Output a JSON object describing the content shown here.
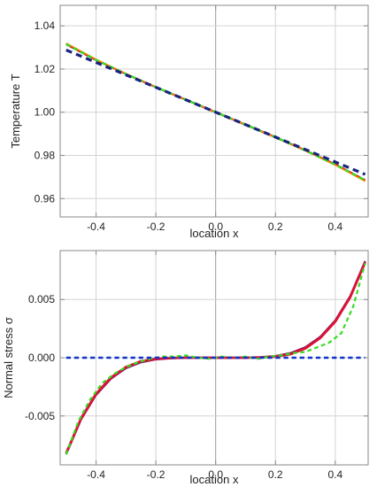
{
  "colors": {
    "frame": "#8a8a8a",
    "grid": "#d4d4d4",
    "zero_line": "#9a9a9a",
    "background": "#ffffff",
    "navy": "#1a237e",
    "green": "#33dd22",
    "red": "#dd1133",
    "orange": "#ff8800",
    "blue": "#1133cc",
    "purple": "#7a1a66"
  },
  "chart_data": [
    {
      "type": "line",
      "xlabel": "location  x",
      "ylabel": "Temperature  T",
      "xlim": [
        -0.52,
        0.51
      ],
      "ylim": [
        0.9515,
        1.0495
      ],
      "grid": true,
      "x_ticks": [
        {
          "value": -0.4,
          "label": "-0.4"
        },
        {
          "value": -0.2,
          "label": "-0.2"
        },
        {
          "value": 0.0,
          "label": "0.0"
        },
        {
          "value": 0.2,
          "label": "0.2"
        },
        {
          "value": 0.4,
          "label": "0.4"
        }
      ],
      "y_ticks": [
        {
          "value": 0.96,
          "label": "0.96"
        },
        {
          "value": 0.98,
          "label": "0.98"
        },
        {
          "value": 1.0,
          "label": "1.00"
        },
        {
          "value": 1.02,
          "label": "1.02"
        },
        {
          "value": 1.04,
          "label": "1.04"
        }
      ],
      "series": [
        {
          "color": "#dd1133",
          "dash": "solid",
          "width": 2.4,
          "x": [
            -0.5,
            -0.4,
            -0.3,
            -0.2,
            -0.1,
            0.0,
            0.1,
            0.2,
            0.3,
            0.4,
            0.5
          ],
          "y": [
            1.0315,
            1.0242,
            1.0177,
            1.0116,
            1.0058,
            1.0,
            0.9942,
            0.9884,
            0.9823,
            0.9758,
            0.9685
          ]
        },
        {
          "color": "#ff8800",
          "dash": "solid",
          "width": 1.6,
          "x": [
            -0.5,
            -0.4,
            -0.3,
            -0.2,
            -0.1,
            0.0,
            0.1,
            0.2,
            0.3,
            0.4,
            0.5
          ],
          "y": [
            1.032,
            1.0245,
            1.0178,
            1.0117,
            1.0058,
            1.0,
            0.9942,
            0.9883,
            0.9822,
            0.9755,
            0.968
          ]
        },
        {
          "color": "#33dd22",
          "dash": "dashed",
          "width": 2.4,
          "x": [
            -0.5,
            -0.4,
            -0.3,
            -0.2,
            -0.1,
            0.0,
            0.1,
            0.2,
            0.3,
            0.4,
            0.5
          ],
          "y": [
            1.0315,
            1.0242,
            1.0177,
            1.0116,
            1.0058,
            1.0,
            0.9942,
            0.9884,
            0.9823,
            0.9758,
            0.9685
          ]
        },
        {
          "color": "#1a237e",
          "dash": "dashed",
          "width": 3.2,
          "x": [
            -0.5,
            0.5
          ],
          "y": [
            1.0288,
            0.9712
          ]
        }
      ]
    },
    {
      "type": "line",
      "xlabel": "location  x",
      "ylabel": "Normal stress  σ",
      "xlim": [
        -0.52,
        0.51
      ],
      "ylim": [
        -0.0092,
        0.0092
      ],
      "grid": true,
      "x_ticks": [
        {
          "value": -0.4,
          "label": "-0.4"
        },
        {
          "value": -0.2,
          "label": "-0.2"
        },
        {
          "value": 0.0,
          "label": "0.0"
        },
        {
          "value": 0.2,
          "label": "0.2"
        },
        {
          "value": 0.4,
          "label": "0.4"
        }
      ],
      "y_ticks": [
        {
          "value": -0.005,
          "label": "-0.005"
        },
        {
          "value": 0.0,
          "label": "0.000"
        },
        {
          "value": 0.005,
          "label": "0.005"
        }
      ],
      "series": [
        {
          "color": "#7a1a66",
          "dash": "solid",
          "width": 2.2,
          "x": [
            -0.5,
            -0.45,
            -0.4,
            -0.35,
            -0.3,
            -0.25,
            -0.2,
            -0.15,
            -0.1,
            0.0,
            0.1,
            0.15,
            0.2,
            0.25,
            0.3,
            0.35,
            0.4,
            0.45,
            0.5
          ],
          "y": [
            -0.0083,
            -0.0053,
            -0.0032,
            -0.0018,
            -0.0009,
            -0.0004,
            -0.00015,
            -5e-05,
            0.0,
            0.0,
            0.0,
            5e-05,
            0.00015,
            0.0004,
            0.0009,
            0.0018,
            0.0032,
            0.0053,
            0.0083
          ]
        },
        {
          "color": "#dd1133",
          "dash": "solid",
          "width": 2.8,
          "x": [
            -0.5,
            -0.45,
            -0.4,
            -0.35,
            -0.3,
            -0.25,
            -0.2,
            -0.15,
            -0.1,
            0.0,
            0.1,
            0.15,
            0.2,
            0.25,
            0.3,
            0.35,
            0.4,
            0.45,
            0.5
          ],
          "y": [
            -0.0082,
            -0.0052,
            -0.0031,
            -0.0017,
            -0.0008,
            -0.0003,
            -0.0001,
            -3e-05,
            0.0,
            0.0,
            0.0,
            3e-05,
            0.0001,
            0.0003,
            0.0008,
            0.0017,
            0.0031,
            0.0052,
            0.0082
          ]
        },
        {
          "color": "#33dd22",
          "dash": "dashed",
          "width": 2.2,
          "x": [
            -0.5,
            -0.46,
            -0.42,
            -0.38,
            -0.34,
            -0.3,
            -0.26,
            -0.22,
            -0.18,
            -0.14,
            -0.1,
            -0.06,
            -0.02,
            0.02,
            0.06,
            0.1,
            0.14,
            0.18,
            0.22,
            0.26,
            0.3,
            0.34,
            0.38,
            0.42,
            0.46,
            0.5
          ],
          "y": [
            -0.0083,
            -0.0055,
            -0.0036,
            -0.0022,
            -0.0014,
            -0.0008,
            -0.0004,
            -0.0001,
            0.0001,
            0.0001,
            0.0002,
            0.0,
            -0.0001,
            0.0001,
            0.0,
            0.0001,
            -0.0001,
            0.0001,
            0.0002,
            0.0004,
            0.0005,
            0.0009,
            0.0013,
            0.0021,
            0.0044,
            0.0081
          ]
        },
        {
          "color": "#1133cc",
          "dash": "dashed",
          "width": 2.4,
          "x": [
            -0.5,
            0.5
          ],
          "y": [
            0.0,
            0.0
          ]
        }
      ]
    }
  ]
}
